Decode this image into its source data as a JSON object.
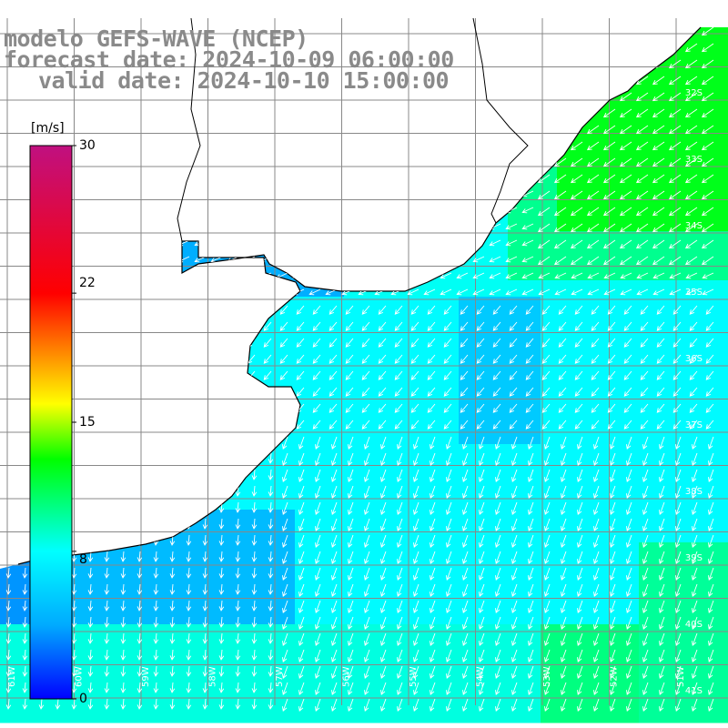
{
  "title": {
    "model": "modelo GEFS-WAVE (NCEP)",
    "forecast": "forecast date: 2024-10-09 06:00:00",
    "valid": "valid date: 2024-10-10 15:00:00"
  },
  "colorbar": {
    "unit": "[m/s]",
    "ticks": [
      "30",
      "22",
      "15",
      "8",
      "0"
    ],
    "tick_values": [
      30,
      22,
      15,
      8,
      0
    ],
    "range": [
      0,
      30
    ],
    "colors": [
      "#0000ff",
      "#00aaff",
      "#00ffff",
      "#00ff00",
      "#ffff00",
      "#ff7f00",
      "#ff0000",
      "#c01080"
    ]
  },
  "map": {
    "variable": "wind speed and direction",
    "land_color": "#ffffff",
    "grid_color": "#888888",
    "coast_color": "#000000",
    "arrow_color": "#ffffff",
    "lat_labels": [
      "32S",
      "33S",
      "34S",
      "35S",
      "36S",
      "37S",
      "38S",
      "39S",
      "40S",
      "41S"
    ],
    "lon_labels": [
      "61W",
      "60W",
      "59W",
      "58W",
      "57W",
      "56W",
      "55W",
      "54W",
      "53W",
      "52W",
      "51W"
    ]
  }
}
